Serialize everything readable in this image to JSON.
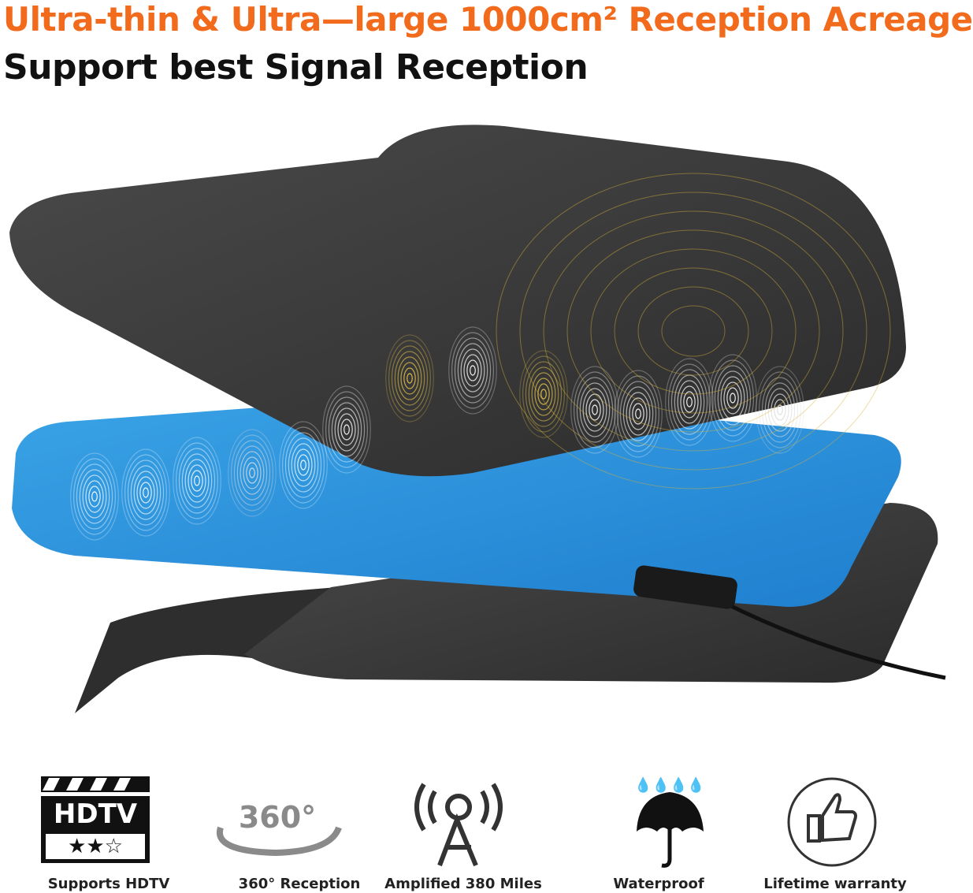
{
  "header": {
    "title": "Ultra-thin & Ultra—large 1000cm² Reception Acreage",
    "subtitle": "Support best Signal Reception"
  },
  "icons": {
    "hdtv": "HDTV",
    "rotation": "360°"
  },
  "features": [
    "Supports HDTV",
    "360° Reception",
    "Amplified 380 Miles",
    "Waterproof",
    "Lifetime warranty"
  ]
}
